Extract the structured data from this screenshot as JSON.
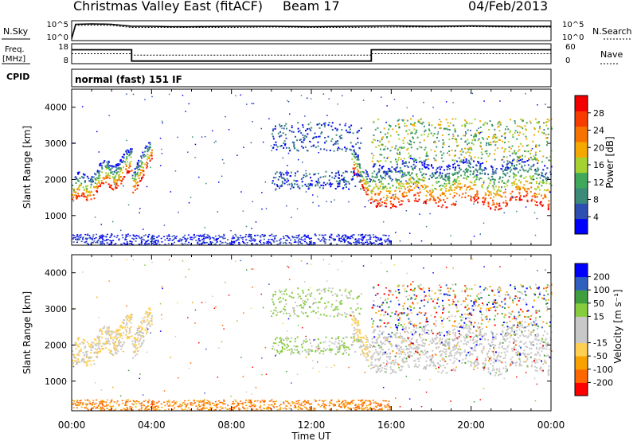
{
  "header": {
    "title": "Christmas Valley East (fitACF)",
    "beam": "Beam 17",
    "date": "04/Feb/2013"
  },
  "colors": {
    "power_scale": [
      "#0000ff",
      "#2d4fb2",
      "#3c8b78",
      "#3fa85a",
      "#a6d231",
      "#f4a900",
      "#f77300",
      "#f83c00",
      "#f20000"
    ],
    "velocity_scale": [
      "#ff0000",
      "#ff6600",
      "#f7a200",
      "#ffcf52",
      "#c8c8c8",
      "#c8c8c8",
      "#85cd3c",
      "#3f9f3f",
      "#2f5fbf",
      "#0000ff"
    ]
  },
  "chart_data": [
    {
      "type": "line",
      "panel": "sky-search-noise",
      "left_label": "N.Sky",
      "right_label": "N.Search",
      "left_ticks": [
        "10^5",
        "10^0"
      ],
      "right_ticks": [
        "10^5",
        "10^0"
      ],
      "description_series": [
        {
          "name": "N.Sky",
          "x_hours": [
            0,
            0.2,
            1,
            2,
            3,
            4,
            5,
            6,
            8,
            10,
            12,
            14,
            16,
            18,
            20,
            22,
            24
          ],
          "y_log": [
            0.5,
            4.1,
            4.2,
            4.1,
            3.6,
            3.6,
            3.5,
            3.5,
            3.6,
            3.6,
            3.5,
            3.6,
            3.7,
            3.6,
            3.7,
            3.6,
            3.6
          ]
        },
        {
          "name": "N.Search",
          "x_hours": [
            0,
            0.2,
            1,
            2,
            3,
            4,
            5,
            6,
            8,
            10,
            12,
            14,
            16,
            18,
            20,
            22,
            24
          ],
          "y_log": [
            0.5,
            3.8,
            3.9,
            3.8,
            3.3,
            3.3,
            3.3,
            3.3,
            3.3,
            3.4,
            3.3,
            3.3,
            3.4,
            3.4,
            3.5,
            3.4,
            3.4
          ]
        }
      ]
    },
    {
      "type": "line",
      "panel": "frequency-nave",
      "left_label": "Freq.",
      "left_unit": "[MHz]",
      "right_label": "Nave",
      "left_ticks": [
        "18",
        "8"
      ],
      "right_ticks": [
        "60",
        "0"
      ],
      "series": [
        {
          "name": "Freq.",
          "x_hours": [
            0,
            3.0,
            3.0,
            15.0,
            15.0,
            24
          ],
          "values": [
            15.3,
            15.3,
            8.6,
            8.6,
            15.3,
            15.3
          ]
        },
        {
          "name": "Nave",
          "x_hours": [
            0,
            3.0,
            3.0,
            15.0,
            15.0,
            24
          ],
          "values": [
            30,
            30,
            26,
            26,
            30,
            30
          ]
        }
      ]
    },
    {
      "type": "heatmap",
      "panel": "power",
      "ylabel": "Slant Range [km]",
      "y_ticks": [
        "1000",
        "2000",
        "3000",
        "4000"
      ],
      "ylim": [
        180,
        4500
      ],
      "colorbar_label": "Power [dB]",
      "colorbar_ticks": [
        "4",
        "8",
        "12",
        "16",
        "20",
        "24",
        "28"
      ],
      "colorbar_range": [
        0,
        32
      ]
    },
    {
      "type": "heatmap",
      "panel": "velocity",
      "ylabel": "Slant Range [km]",
      "y_ticks": [
        "1000",
        "2000",
        "3000",
        "4000"
      ],
      "ylim": [
        180,
        4500
      ],
      "colorbar_label": "Velocity [m s⁻¹]",
      "colorbar_ticks": [
        "200",
        "100",
        "50",
        "15",
        "-15",
        "-50",
        "-100",
        "-200"
      ],
      "xlabel": "Time UT",
      "x_ticks": [
        "00:00",
        "04:00",
        "08:00",
        "12:00",
        "16:00",
        "20:00",
        "00:00"
      ],
      "xlim_hours": [
        0,
        24
      ]
    }
  ],
  "cpid": {
    "label": "CPID",
    "mode": "normal (fast) 151 IF"
  }
}
